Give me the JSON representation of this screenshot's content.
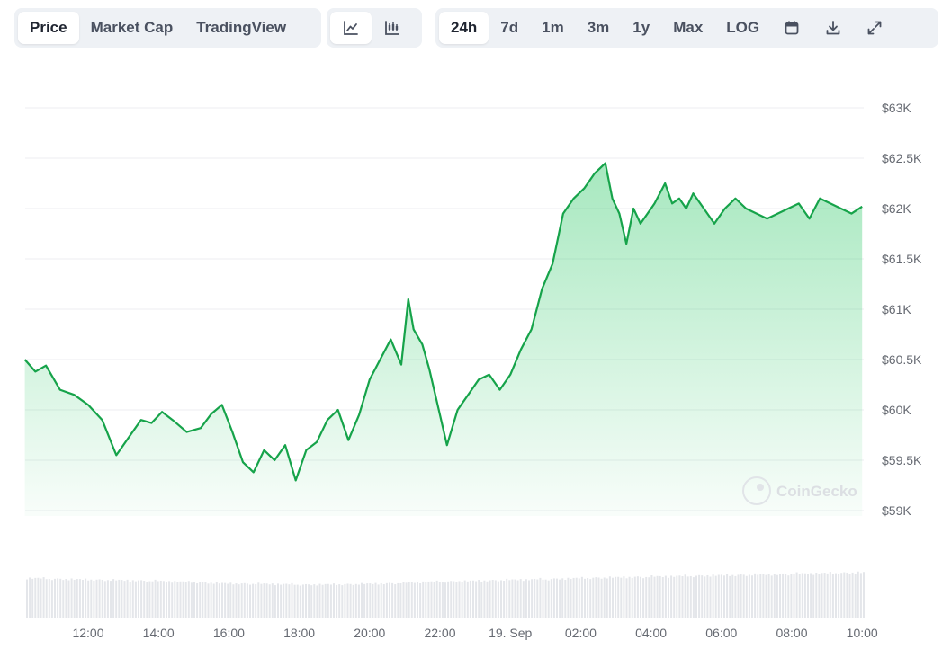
{
  "toolbar": {
    "metric_tabs": [
      {
        "label": "Price",
        "active": true
      },
      {
        "label": "Market Cap",
        "active": false
      },
      {
        "label": "TradingView",
        "active": false
      }
    ],
    "chart_types": [
      {
        "icon": "line-chart-icon",
        "active": true
      },
      {
        "icon": "candlestick-chart-icon",
        "active": false
      }
    ],
    "ranges": [
      {
        "label": "24h",
        "active": true
      },
      {
        "label": "7d",
        "active": false
      },
      {
        "label": "1m",
        "active": false
      },
      {
        "label": "3m",
        "active": false
      },
      {
        "label": "1y",
        "active": false
      },
      {
        "label": "Max",
        "active": false
      },
      {
        "label": "LOG",
        "active": false
      }
    ],
    "action_icons": [
      "calendar-icon",
      "download-icon",
      "fullscreen-icon"
    ]
  },
  "watermark": "CoinGecko",
  "colors": {
    "line": "#16a34a",
    "fill": "#22c55e",
    "grid": "#eceef1",
    "volume": "#e4e6ea",
    "active_tab_bg": "#ffffff",
    "toolbar_bg": "#eef1f5"
  },
  "chart_data": {
    "type": "area",
    "title": "",
    "xlabel": "",
    "ylabel": "",
    "ylim": [
      58900,
      63200
    ],
    "y_ticks": [
      59000,
      59500,
      60000,
      60500,
      61000,
      61500,
      62000,
      62500,
      63000
    ],
    "y_tick_labels": [
      "$59K",
      "$59.5K",
      "$60K",
      "$60.5K",
      "$61K",
      "$61.5K",
      "$62K",
      "$62.5K",
      "$63K"
    ],
    "x_ticks": [
      12,
      14,
      16,
      18,
      20,
      22,
      24,
      26,
      28,
      30,
      32,
      34
    ],
    "x_tick_labels": [
      "12:00",
      "14:00",
      "16:00",
      "18:00",
      "20:00",
      "22:00",
      "19. Sep",
      "02:00",
      "04:00",
      "06:00",
      "08:00",
      "10:00"
    ],
    "xlim": [
      10.2,
      34.1
    ],
    "grid": true,
    "series": [
      {
        "x": [
          10.2,
          10.5,
          10.8,
          11.2,
          11.6,
          12.0,
          12.4,
          12.8,
          13.2,
          13.5,
          13.8,
          14.1,
          14.4,
          14.8,
          15.2,
          15.5,
          15.8,
          16.1,
          16.4,
          16.7,
          17.0,
          17.3,
          17.6,
          17.9,
          18.2,
          18.5,
          18.8,
          19.1,
          19.4,
          19.7,
          20.0,
          20.3,
          20.6,
          20.9,
          21.1,
          21.25,
          21.5,
          21.7,
          21.9,
          22.2,
          22.5,
          22.8,
          23.1,
          23.4,
          23.7,
          24.0,
          24.3,
          24.6,
          24.9,
          25.2,
          25.5,
          25.8,
          26.1,
          26.4,
          26.7,
          26.9,
          27.1,
          27.3,
          27.5,
          27.7,
          27.9,
          28.1,
          28.4,
          28.6,
          28.8,
          29.0,
          29.2,
          29.5,
          29.8,
          30.1,
          30.4,
          30.7,
          31.0,
          31.3,
          31.6,
          31.9,
          32.2,
          32.5,
          32.8,
          33.1,
          33.4,
          33.7,
          34.0
        ],
        "y": [
          60500,
          60380,
          60440,
          60200,
          60150,
          60050,
          59900,
          59550,
          59750,
          59900,
          59870,
          59980,
          59900,
          59780,
          59820,
          59960,
          60050,
          59780,
          59480,
          59380,
          59600,
          59500,
          59650,
          59300,
          59600,
          59680,
          59900,
          60000,
          59700,
          59950,
          60300,
          60500,
          60700,
          60450,
          61100,
          60800,
          60650,
          60400,
          60100,
          59650,
          60000,
          60150,
          60300,
          60350,
          60200,
          60350,
          60600,
          60800,
          61200,
          61450,
          61950,
          62100,
          62200,
          62350,
          62450,
          62100,
          61950,
          61650,
          62000,
          61850,
          61950,
          62050,
          62250,
          62050,
          62100,
          62000,
          62150,
          62000,
          61850,
          62000,
          62100,
          62000,
          61950,
          61900,
          61950,
          62000,
          62050,
          61900,
          62100,
          62050,
          62000,
          61950,
          62020
        ]
      }
    ],
    "volume": [
      1.0,
      0.97,
      0.95,
      0.93,
      0.9,
      0.86,
      0.85,
      0.83,
      0.84,
      0.86,
      0.9,
      0.92,
      0.95,
      0.97,
      1.0,
      1.02,
      1.04,
      1.06,
      1.08,
      1.1,
      1.12,
      1.14
    ]
  }
}
